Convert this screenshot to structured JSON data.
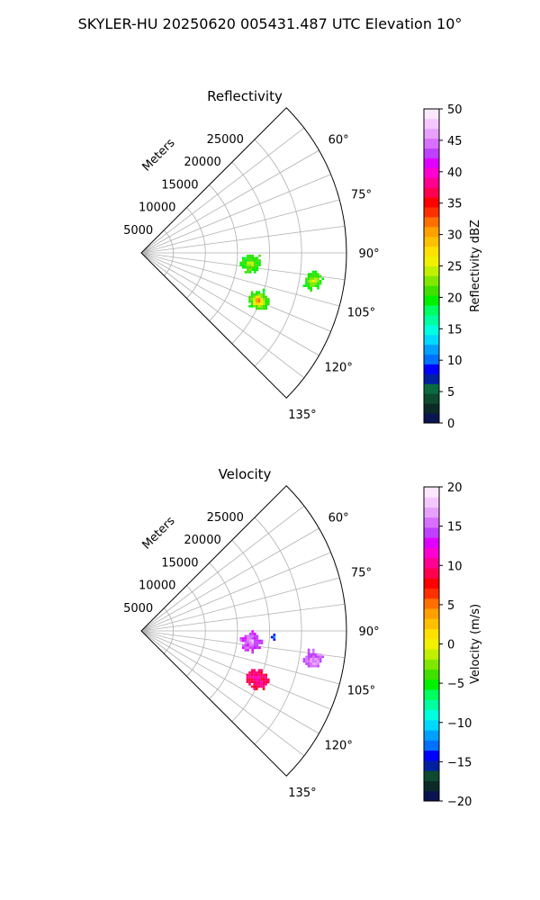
{
  "title": "SKYLER-HU  20250620  005431.487 UTC Elevation 10°",
  "chart_data": [
    {
      "type": "radar-ppi",
      "title": "Reflectivity",
      "radial_label": "Meters",
      "radial_ticks": [
        5000,
        10000,
        15000,
        20000,
        25000
      ],
      "radial_tick_labels": [
        "5000",
        "10000",
        "15000",
        "20000",
        "25000"
      ],
      "range_max_m": 32000,
      "azimuth_range_deg": [
        45,
        135
      ],
      "azimuth_ticks": [
        "60°",
        "75°",
        "90°",
        "105°",
        "120°",
        "135°"
      ],
      "azimuth_tick_values": [
        60,
        75,
        90,
        105,
        120,
        135
      ],
      "grid": true,
      "colorbar": {
        "label": "Reflectivity dBZ",
        "min": 0,
        "max": 50,
        "ticks": [
          0,
          5,
          10,
          15,
          20,
          25,
          30,
          35,
          40,
          45,
          50
        ],
        "tick_labels": [
          "0",
          "5",
          "10",
          "15",
          "20",
          "25",
          "30",
          "35",
          "40",
          "45",
          "50"
        ],
        "colors": [
          "#0a1450",
          "#0c2a28",
          "#0e4a30",
          "#0a6a40",
          "#0020a0",
          "#0000ff",
          "#0070ff",
          "#00a0ff",
          "#00d8ff",
          "#00ffe0",
          "#00ffa0",
          "#00ff60",
          "#00f000",
          "#40e000",
          "#80e800",
          "#c0f000",
          "#f0f000",
          "#ffe000",
          "#ffc000",
          "#ffa000",
          "#ff7000",
          "#ff3000",
          "#ff0000",
          "#ff0050",
          "#ff0090",
          "#ff00d0",
          "#e000ff",
          "#c040ff",
          "#d870ff",
          "#e8a0ff",
          "#f4c8ff",
          "#fbe8ff"
        ]
      },
      "echoes": [
        {
          "azimuth_deg": 95,
          "range_m": 17000,
          "radius_m": 1500,
          "value": 20,
          "peak": 25
        },
        {
          "azimuth_deg": 99,
          "range_m": 27000,
          "radius_m": 1400,
          "value": 20,
          "peak": 26
        },
        {
          "azimuth_deg": 112,
          "range_m": 19500,
          "radius_m": 1600,
          "value": 20,
          "peak": 36
        }
      ]
    },
    {
      "type": "radar-ppi",
      "title": "Velocity",
      "radial_label": "Meters",
      "radial_ticks": [
        5000,
        10000,
        15000,
        20000,
        25000
      ],
      "radial_tick_labels": [
        "5000",
        "10000",
        "15000",
        "20000",
        "25000"
      ],
      "range_max_m": 32000,
      "azimuth_range_deg": [
        45,
        135
      ],
      "azimuth_ticks": [
        "60°",
        "75°",
        "90°",
        "105°",
        "120°",
        "135°"
      ],
      "azimuth_tick_values": [
        60,
        75,
        90,
        105,
        120,
        135
      ],
      "grid": true,
      "colorbar": {
        "label": "Velocity (m/s)",
        "min": -20,
        "max": 20,
        "ticks": [
          -20,
          -15,
          -10,
          -5,
          0,
          5,
          10,
          15,
          20
        ],
        "tick_labels": [
          "−20",
          "−15",
          "−10",
          "−5",
          "0",
          "5",
          "10",
          "15",
          "20"
        ],
        "colors": [
          "#0a1450",
          "#0c2a28",
          "#0e4a30",
          "#0020a0",
          "#0000ff",
          "#0070ff",
          "#00a0ff",
          "#00d8ff",
          "#00ffe0",
          "#00ffa0",
          "#00ff60",
          "#00f000",
          "#40e000",
          "#80e800",
          "#c0f000",
          "#f0f000",
          "#ffe000",
          "#ffc000",
          "#ffa000",
          "#ff7000",
          "#ff3000",
          "#ff0000",
          "#ff0050",
          "#ff0090",
          "#ff00d0",
          "#e000ff",
          "#c040ff",
          "#d870ff",
          "#e8a0ff",
          "#f4c8ff",
          "#fbe8ff"
        ]
      },
      "echoes": [
        {
          "azimuth_deg": 95,
          "range_m": 17000,
          "radius_m": 1500,
          "value": 14,
          "peak": 17
        },
        {
          "azimuth_deg": 92,
          "range_m": 20500,
          "radius_m": 500,
          "value": -13,
          "peak": -11
        },
        {
          "azimuth_deg": 99,
          "range_m": 27000,
          "radius_m": 1400,
          "value": 15,
          "peak": 17
        },
        {
          "azimuth_deg": 112,
          "range_m": 19500,
          "radius_m": 1600,
          "value": 9,
          "peak": 11
        }
      ]
    }
  ]
}
